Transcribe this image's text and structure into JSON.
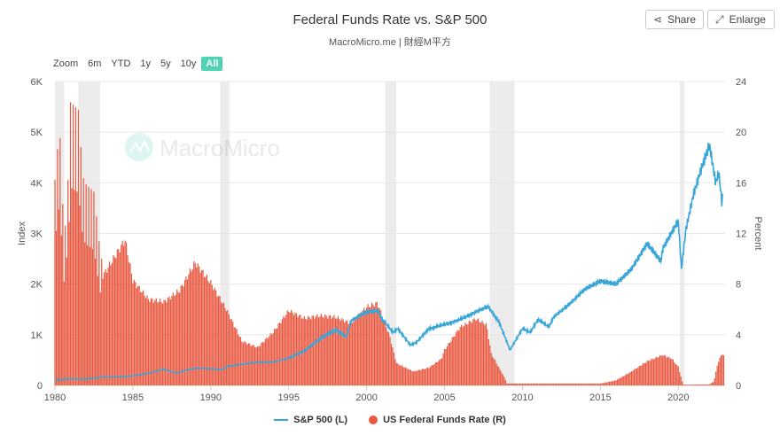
{
  "header": {
    "title": "Federal Funds Rate vs. S&P 500",
    "subtitle": "MacroMicro.me | 財經M平方"
  },
  "toolbar": {
    "share_label": "Share",
    "enlarge_label": "Enlarge"
  },
  "zoom": {
    "label": "Zoom",
    "options": [
      "6m",
      "YTD",
      "1y",
      "5y",
      "10y",
      "All"
    ],
    "active": "All"
  },
  "watermark": {
    "text": "MacroMicro"
  },
  "legend": {
    "sp500": "S&P 500 (L)",
    "ffr": "US Federal Funds Rate (R)"
  },
  "colors": {
    "sp500": "#3aa6d8",
    "ffr": "#e8573f",
    "recession": "#ececec",
    "accent": "#50d2b4"
  },
  "chart_data": {
    "type": "line",
    "x_range": [
      1980,
      2023
    ],
    "x_ticks": [
      "1980",
      "1985",
      "1990",
      "1995",
      "2000",
      "2005",
      "2010",
      "2015",
      "2020"
    ],
    "left_axis": {
      "label": "Index",
      "range": [
        0,
        6000
      ],
      "ticks": [
        "0",
        "1K",
        "2K",
        "3K",
        "4K",
        "5K",
        "6K"
      ]
    },
    "right_axis": {
      "label": "Percent",
      "range": [
        0,
        24
      ],
      "ticks": [
        "0",
        "4",
        "8",
        "12",
        "16",
        "20",
        "24"
      ]
    },
    "recessions": [
      [
        1980.0,
        1980.6
      ],
      [
        1981.5,
        1982.9
      ],
      [
        1990.6,
        1991.2
      ],
      [
        2001.2,
        2001.9
      ],
      [
        2007.9,
        2009.5
      ],
      [
        2020.1,
        2020.4
      ]
    ],
    "series": [
      {
        "name": "S&P 500 (L)",
        "type": "line",
        "axis": "left",
        "points": [
          [
            1980,
            110
          ],
          [
            1981,
            130
          ],
          [
            1982,
            120
          ],
          [
            1983,
            165
          ],
          [
            1984,
            165
          ],
          [
            1985,
            190
          ],
          [
            1986,
            240
          ],
          [
            1987,
            320
          ],
          [
            1987.8,
            240
          ],
          [
            1988,
            265
          ],
          [
            1989,
            340
          ],
          [
            1990,
            330
          ],
          [
            1990.8,
            310
          ],
          [
            1991,
            370
          ],
          [
            1992,
            420
          ],
          [
            1993,
            460
          ],
          [
            1994,
            460
          ],
          [
            1995,
            540
          ],
          [
            1996,
            680
          ],
          [
            1997,
            920
          ],
          [
            1998,
            1100
          ],
          [
            1998.7,
            960
          ],
          [
            1999,
            1280
          ],
          [
            2000,
            1450
          ],
          [
            2000.7,
            1480
          ],
          [
            2001,
            1300
          ],
          [
            2001.7,
            1050
          ],
          [
            2002,
            1120
          ],
          [
            2002.8,
            800
          ],
          [
            2003.2,
            850
          ],
          [
            2004,
            1120
          ],
          [
            2005,
            1200
          ],
          [
            2006,
            1300
          ],
          [
            2007,
            1450
          ],
          [
            2007.8,
            1560
          ],
          [
            2008.5,
            1250
          ],
          [
            2009.2,
            700
          ],
          [
            2010,
            1120
          ],
          [
            2010.5,
            1050
          ],
          [
            2011,
            1300
          ],
          [
            2011.7,
            1150
          ],
          [
            2012,
            1350
          ],
          [
            2013,
            1600
          ],
          [
            2014,
            1900
          ],
          [
            2015,
            2060
          ],
          [
            2016,
            2000
          ],
          [
            2016.5,
            2150
          ],
          [
            2017,
            2300
          ],
          [
            2018,
            2800
          ],
          [
            2018.9,
            2450
          ],
          [
            2019,
            2700
          ],
          [
            2020,
            3250
          ],
          [
            2020.2,
            2300
          ],
          [
            2020.5,
            3100
          ],
          [
            2021,
            3800
          ],
          [
            2021.5,
            4300
          ],
          [
            2022,
            4750
          ],
          [
            2022.4,
            4000
          ],
          [
            2022.6,
            4200
          ],
          [
            2022.8,
            3600
          ],
          [
            2022.9,
            3850
          ]
        ]
      },
      {
        "name": "US Federal Funds Rate (R)",
        "type": "column",
        "axis": "right",
        "points": [
          [
            1980,
            13.8
          ],
          [
            1980.3,
            17.5
          ],
          [
            1980.6,
            9.5
          ],
          [
            1980.9,
            15
          ],
          [
            1981,
            19
          ],
          [
            1981.5,
            18.5
          ],
          [
            1981.8,
            14
          ],
          [
            1982,
            13.5
          ],
          [
            1982.5,
            13
          ],
          [
            1982.9,
            9
          ],
          [
            1983,
            8.5
          ],
          [
            1984,
            10.5
          ],
          [
            1984.5,
            11.5
          ],
          [
            1985,
            8.3
          ],
          [
            1986,
            6.8
          ],
          [
            1987,
            6.6
          ],
          [
            1988,
            7.5
          ],
          [
            1989,
            9.7
          ],
          [
            1990,
            8.1
          ],
          [
            1991,
            6
          ],
          [
            1992,
            3.5
          ],
          [
            1993,
            3
          ],
          [
            1994,
            4.2
          ],
          [
            1995,
            5.9
          ],
          [
            1996,
            5.3
          ],
          [
            1997,
            5.5
          ],
          [
            1998,
            5.4
          ],
          [
            1999,
            4.9
          ],
          [
            2000,
            6.2
          ],
          [
            2000.7,
            6.5
          ],
          [
            2001,
            5.5
          ],
          [
            2001.5,
            3.8
          ],
          [
            2001.9,
            1.8
          ],
          [
            2002,
            1.7
          ],
          [
            2003,
            1.1
          ],
          [
            2004,
            1.4
          ],
          [
            2004.8,
            2.1
          ],
          [
            2005,
            2.8
          ],
          [
            2006,
            4.6
          ],
          [
            2007,
            5.25
          ],
          [
            2007.7,
            4.8
          ],
          [
            2008,
            2.5
          ],
          [
            2008.9,
            0.5
          ],
          [
            2009,
            0.15
          ],
          [
            2015,
            0.15
          ],
          [
            2016,
            0.4
          ],
          [
            2017,
            1.1
          ],
          [
            2018,
            1.9
          ],
          [
            2019,
            2.4
          ],
          [
            2019.6,
            2.1
          ],
          [
            2019.9,
            1.6
          ],
          [
            2020,
            1.5
          ],
          [
            2020.3,
            0.06
          ],
          [
            2022,
            0.08
          ],
          [
            2022.3,
            0.33
          ],
          [
            2022.5,
            1.6
          ],
          [
            2022.8,
            2.56
          ],
          [
            2022.9,
            2.3
          ]
        ]
      }
    ]
  }
}
